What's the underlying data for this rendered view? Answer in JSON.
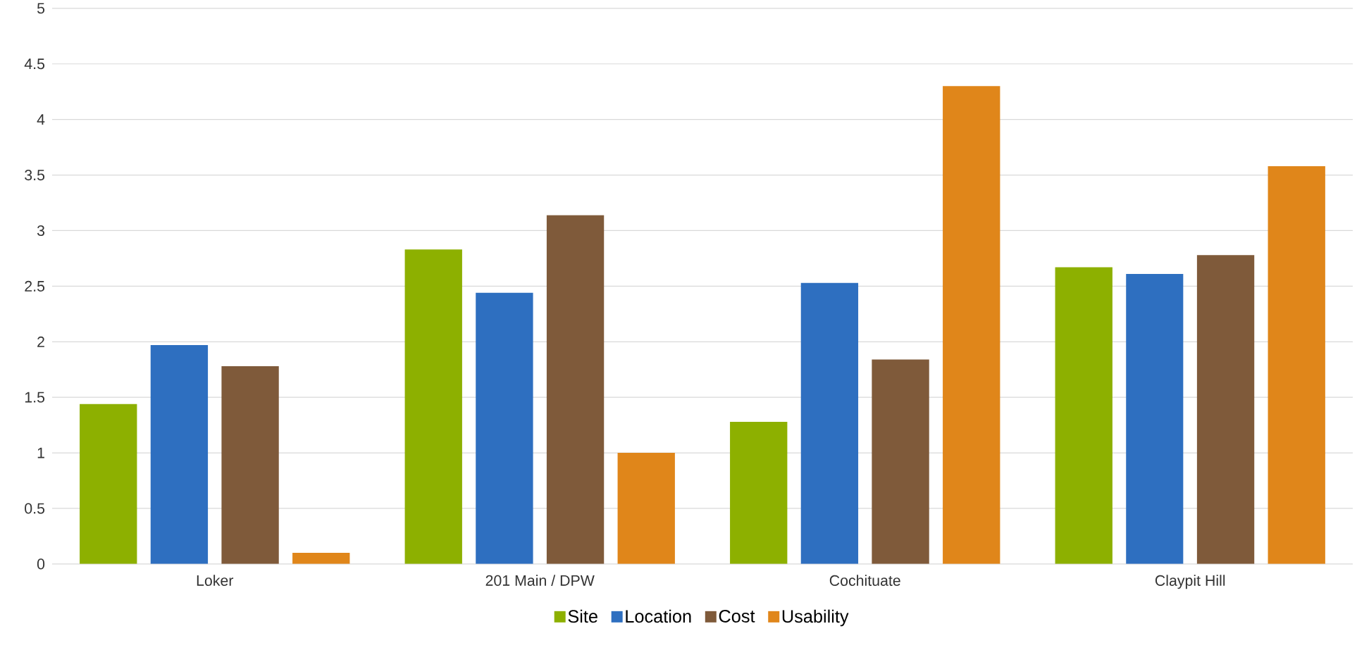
{
  "chart_data": {
    "type": "bar",
    "categories": [
      "Loker",
      "201 Main / DPW",
      "Cochituate",
      "Claypit Hill"
    ],
    "series": [
      {
        "name": "Site",
        "color": "#8db000",
        "values": [
          1.44,
          2.83,
          1.28,
          2.67
        ]
      },
      {
        "name": "Location",
        "color": "#2e6fc0",
        "values": [
          1.97,
          2.44,
          2.53,
          2.61
        ]
      },
      {
        "name": "Cost",
        "color": "#7f5a3a",
        "values": [
          1.78,
          3.14,
          1.84,
          2.78
        ]
      },
      {
        "name": "Usability",
        "color": "#e0861a",
        "values": [
          0.1,
          1.0,
          4.3,
          3.58
        ]
      }
    ],
    "ylim": [
      0,
      5
    ],
    "yticks": [
      0,
      0.5,
      1,
      1.5,
      2,
      2.5,
      3,
      3.5,
      4,
      4.5,
      5
    ],
    "grid": "y",
    "legend": "bottom"
  }
}
